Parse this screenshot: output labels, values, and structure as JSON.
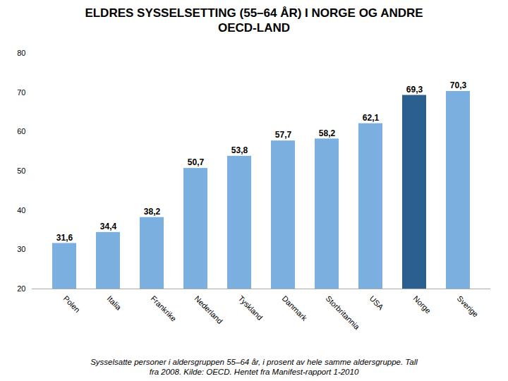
{
  "chart_data": {
    "type": "bar",
    "title": "ELDRES SYSSELSETTING (55–64 ÅR) I NORGE OG ANDRE\nOECD-LAND",
    "caption": "Sysselsatte personer i aldersgruppen 55–64 år, i prosent av hele samme aldersgruppe. Tall\nfra 2008. Kilde: OECD. Hentet fra Manifest-rapport 1-2010",
    "categories": [
      "Polen",
      "Italia",
      "Frankrike",
      "Nederland",
      "Tyskland",
      "Danmark",
      "Storbritannia",
      "USA",
      "Norge",
      "Sverige"
    ],
    "values": [
      31.6,
      34.4,
      38.2,
      50.7,
      53.8,
      57.7,
      58.2,
      62.1,
      69.3,
      70.3
    ],
    "value_labels": [
      "31,6",
      "34,4",
      "38,2",
      "50,7",
      "53,8",
      "57,7",
      "58,2",
      "62,1",
      "69,3",
      "70,3"
    ],
    "colors": [
      "#7aafe0",
      "#7aafe0",
      "#7aafe0",
      "#7aafe0",
      "#7aafe0",
      "#7aafe0",
      "#7aafe0",
      "#7aafe0",
      "#2a5f8f",
      "#7aafe0"
    ],
    "ylim": [
      20,
      80
    ],
    "yticks": [
      20,
      30,
      40,
      50,
      60,
      70,
      80
    ],
    "grid": false,
    "data_labels": true
  }
}
